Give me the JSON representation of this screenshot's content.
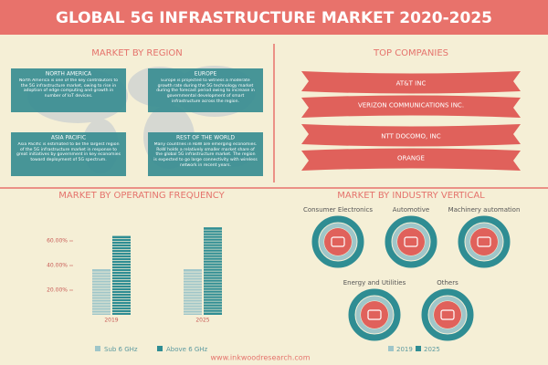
{
  "header": {
    "title": "GLOBAL 5G INFRASTRUCTURE MARKET 2020-2025"
  },
  "region": {
    "title": "MARKET BY REGION",
    "boxes": [
      {
        "label": "NORTH AMERICA",
        "text": "North America is one of the key contributors to the 5G infrastructure market, owing to rise in adoption of edge computing and growth in number of IoT devices."
      },
      {
        "label": "EUROPE",
        "text": "Europe is projected to witness a moderate growth rate during the 5G technology market during the forecast period owing to increase in governmental development of smart infrastructure across the region."
      },
      {
        "label": "ASIA PACIFIC",
        "text": "Asia Pacific is estimated to be the largest region of the 5G infrastructure market in response to great initiatives by government in key economies toward deployment of 5G spectrum."
      },
      {
        "label": "REST OF THE WORLD",
        "text": "Many countries in RoW are emerging economies. RoW holds a relatively smaller market share of the global 5G infrastructure market. The region is expected to go large connectivity with wireless network in recent years."
      }
    ]
  },
  "companies": {
    "title": "TOP COMPANIES",
    "items": [
      "AT&T INC",
      "VERIZON COMMUNICATIONS INC.",
      "NTT DOCOMO, INC",
      "ORANGE"
    ]
  },
  "frequency": {
    "type": "bar",
    "title": "MARKET BY OPERATING FREQUENCY",
    "categories": [
      "2019",
      "2025"
    ],
    "series": [
      {
        "name": "Sub 6 GHz",
        "color": "#9fc6c9",
        "values": [
          37,
          37
        ]
      },
      {
        "name": "Above 6 GHz",
        "color": "#2f8d93",
        "values": [
          64,
          71
        ]
      }
    ],
    "ylim": [
      0,
      80
    ],
    "yticks": [
      {
        "value": 20,
        "label": "20.00%"
      },
      {
        "value": 40,
        "label": "40.00%"
      },
      {
        "value": 60,
        "label": "60.00%"
      }
    ]
  },
  "vertical": {
    "title": "MARKET BY INDUSTRY VERTICAL",
    "items": [
      "Consumer Electronics",
      "Automotive",
      "Machinery automation",
      "Energy and Utilities",
      "Others"
    ],
    "legend": [
      {
        "name": "2019",
        "color": "#9fc6c9"
      },
      {
        "name": "2025",
        "color": "#2f8d93"
      }
    ]
  },
  "footer": "www.inkwoodresearch.com"
}
